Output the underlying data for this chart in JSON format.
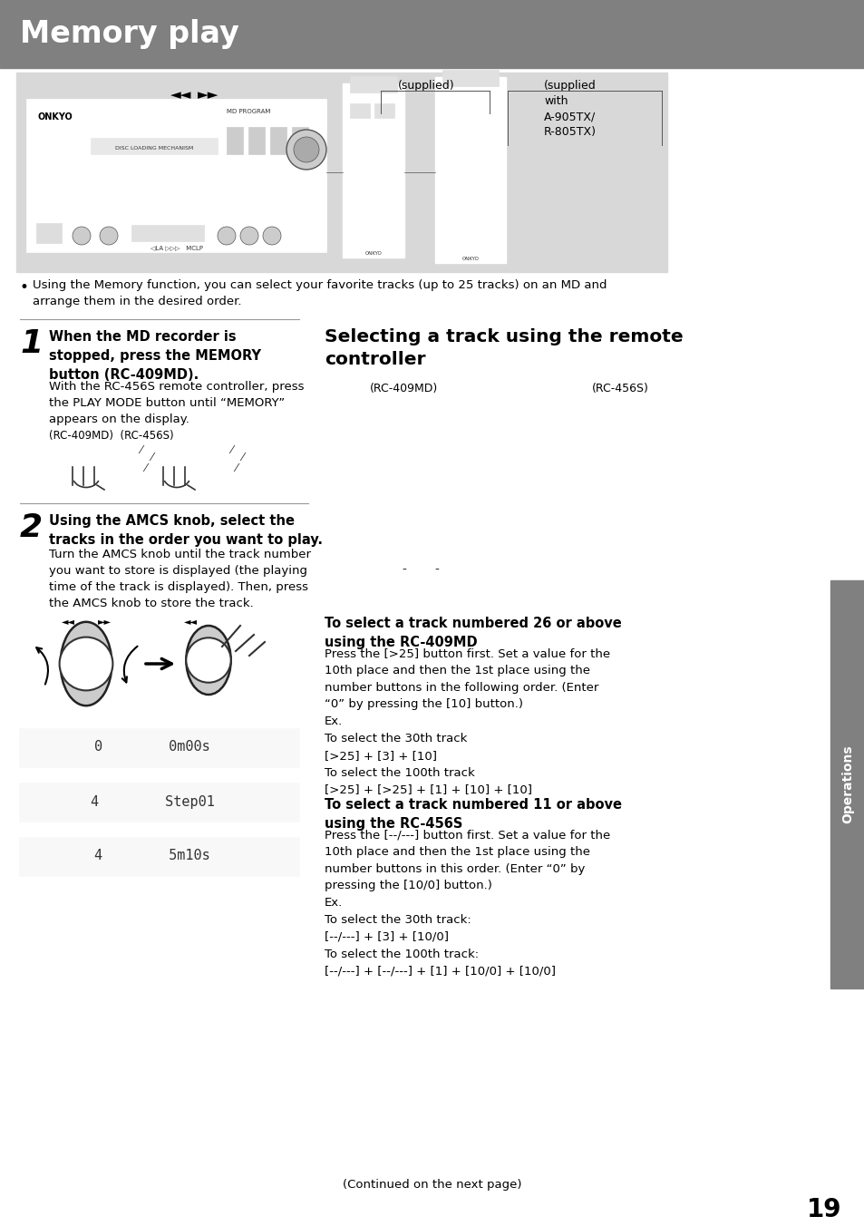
{
  "title": "Memory play",
  "title_bg": "#808080",
  "title_color": "#ffffff",
  "title_fontsize": 22,
  "page_bg": "#ffffff",
  "body_text_color": "#000000",
  "img_area_bg": "#d8d8d8",
  "bullet_text": "Using the Memory function, you can select your favorite tracks (up to 25 tracks) on an MD and\narrange them in the desired order.",
  "step1_number": "1",
  "step1_bold": "When the MD recorder is\nstopped, press the MEMORY\nbutton (RC-409MD).",
  "step1_body": "With the RC-456S remote controller, press\nthe PLAY MODE button until “MEMORY”\nappears on the display.",
  "step1_rc_label": "(RC-409MD)  (RC-456S)",
  "step2_number": "2",
  "step2_bold": "Using the AMCS knob, select the\ntracks in the order you want to play.",
  "step2_body": "Turn the AMCS knob until the track number\nyou want to store is displayed (the playing\ntime of the track is displayed). Then, press\nthe AMCS knob to store the track.",
  "supplied_label": "(supplied)",
  "supplied_with_label": "(supplied\nwith\nA-905TX/\nR-805TX)",
  "rc409md_label": "(RC-409MD)",
  "rc456s_label": "(RC-456S)",
  "right_section_title": "Selecting a track using the remote\ncontroller",
  "section26_title": "To select a track numbered 26 or above\nusing the RC-409MD",
  "section26_body": "Press the [>25] button first. Set a value for the\n10th place and then the 1st place using the\nnumber buttons in the following order. (Enter\n“0” by pressing the [10] button.)\nEx.\nTo select the 30th track\n[>25] + [3] + [10]\nTo select the 100th track\n[>25] + [>25] + [1] + [10] + [10]",
  "section11_title": "To select a track numbered 11 or above\nusing the RC-456S",
  "section11_body": "Press the [--/---] button first. Set a value for the\n10th place and then the 1st place using the\nnumber buttons in this order. (Enter “0” by\npressing the [10/0] button.)\nEx.\nTo select the 30th track:\n[--/---] + [3] + [10/0]\nTo select the 100th track:\n[--/---] + [--/---] + [1] + [10/0] + [10/0]",
  "continued_text": "(Continued on the next page)",
  "page_number": "19",
  "operations_label": "Operations",
  "sidebar_color": "#808080",
  "display_texts": [
    "0        0m00s",
    "4        Step01",
    "4        5m10s"
  ],
  "display_bg": "#f5f5f5",
  "display_text_color": "#444444"
}
